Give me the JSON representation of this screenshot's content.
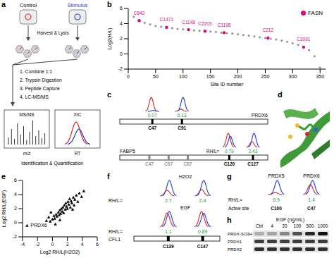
{
  "workflow": {
    "letter": "a",
    "control": "Control",
    "stimulus": "Stimulus",
    "harvest": "Harvest & Lysis",
    "steps": [
      "1. Combine 1:1",
      "2. Trypsin Digestion",
      "3. Peptide Capture",
      "4. LC-MS/MS"
    ],
    "ms_title": "MS/MS",
    "ms_axis": "m/z",
    "xic_title": "XIC",
    "xic_axis": "RT",
    "result": "Identification & Quantification"
  },
  "chart_data": [
    {
      "letter": "b",
      "type": "scatter",
      "x_label": "Site ID number",
      "y_label": "Log2(H/L)",
      "xlim": [
        0,
        360
      ],
      "xticks": [
        0,
        50,
        100,
        150,
        200,
        250,
        300,
        350
      ],
      "ylim": [
        -2,
        6
      ],
      "yticks": [
        -2,
        0,
        2,
        4,
        6
      ],
      "legend": "top-right",
      "series": [
        {
          "color": "#9a9a9a",
          "marker": "circle",
          "x": [
            0,
            10,
            20,
            30,
            40,
            50,
            60,
            70,
            80,
            90,
            100,
            110,
            120,
            130,
            140,
            150,
            160,
            170,
            180,
            190,
            200,
            210,
            220,
            230,
            240,
            250,
            260,
            270,
            280,
            290,
            300,
            310,
            320,
            330,
            340,
            350
          ],
          "values": [
            5.8,
            4.9,
            4.4,
            4.1,
            3.9,
            3.7,
            3.6,
            3.5,
            3.4,
            3.3,
            3.25,
            3.2,
            3.1,
            3.05,
            3.0,
            2.95,
            2.9,
            2.8,
            2.75,
            2.7,
            2.6,
            2.5,
            2.4,
            2.3,
            2.2,
            2.1,
            2.0,
            1.9,
            1.75,
            1.6,
            1.4,
            1.2,
            0.9,
            0.5,
            -0.3,
            -1.8
          ]
        },
        {
          "name": "FASN",
          "color": "#e5007e",
          "marker": "circle",
          "x": [
            20,
            70,
            110,
            140,
            175,
            255,
            320
          ],
          "values": [
            4.4,
            3.5,
            3.2,
            3.0,
            2.8,
            2.1,
            0.9
          ],
          "point_labels": [
            "C842",
            "C1471",
            "C1148",
            "C2203",
            "C1198",
            "C212",
            "C2091"
          ]
        }
      ]
    },
    {
      "letter": "e",
      "type": "scatter",
      "x_label": "Log2 RH/L(H2O2)",
      "y_label": "Log2 RH/L(EGF)",
      "xlim": [
        -4,
        6
      ],
      "xticks": [
        -4,
        -2,
        0,
        2,
        4,
        6
      ],
      "ylim": [
        -2,
        6
      ],
      "yticks": [
        -2,
        0,
        2,
        4,
        6
      ],
      "series": [
        {
          "color": "#000000",
          "marker": "triangle",
          "x": [
            -3.4,
            -0.8,
            -0.5,
            -0.3,
            0,
            0.2,
            0.3,
            0.5,
            0.6,
            0.8,
            0.9,
            1.0,
            1.1,
            1.2,
            1.3,
            1.4,
            1.5,
            1.6,
            1.7,
            1.8,
            1.9,
            2.0,
            2.1,
            2.2,
            2.3,
            2.4,
            2.5,
            2.6,
            2.8,
            2.9,
            3.0,
            3.2,
            3.4,
            3.6,
            3.9,
            4.2,
            -0.2,
            0.4,
            1.0,
            2.7
          ],
          "values": [
            -0.4,
            0.3,
            0.8,
            0.2,
            0.5,
            1.0,
            0.6,
            1.2,
            0.9,
            1.5,
            1.1,
            1.8,
            1.3,
            2.0,
            1.6,
            2.2,
            1.4,
            2.5,
            1.9,
            2.8,
            2.3,
            2.0,
            3.0,
            2.6,
            3.4,
            2.2,
            3.1,
            2.8,
            3.6,
            2.5,
            3.3,
            3.9,
            3.0,
            4.2,
            3.7,
            4.5,
            1.5,
            -0.2,
            0.4,
            1.9
          ]
        }
      ],
      "annotations": [
        {
          "text": "PRDX6",
          "x": -3.4,
          "y": -0.4
        }
      ]
    }
  ],
  "protein_sites": {
    "letter": "c",
    "proteins": [
      {
        "name": "PRDX6",
        "sites": [
          "C47",
          "C91"
        ],
        "ratios": [
          0.07,
          6.13
        ]
      },
      {
        "name": "FABP5",
        "ratio_label": "RH/L=",
        "sites": [
          "C47",
          "C67",
          "C87",
          "C120",
          "C127"
        ],
        "ratios": [
          null,
          null,
          null,
          0.79,
          2.43
        ]
      }
    ]
  },
  "structure": {
    "letter": "d"
  },
  "cfl1": {
    "letter": "f",
    "protein": "CFL1",
    "sites": [
      "C139",
      "C147"
    ],
    "ratio_label": "RH/L=",
    "conditions": [
      {
        "name": "H2O2",
        "ratios": [
          2.7,
          2.4
        ]
      },
      {
        "name": "EGF",
        "ratios": [
          1.1,
          0.89
        ]
      }
    ]
  },
  "active_site": {
    "letter": "g",
    "ratio_label": "RH/L=",
    "site_label": "Active site",
    "proteins": [
      {
        "name": "PRDX5",
        "site": "C100",
        "ratio": 6.9
      },
      {
        "name": "PRDX6",
        "site": "C47",
        "ratio": 1.4
      }
    ]
  },
  "blot": {
    "letter": "h",
    "treatment": "EGF (ng/mL)",
    "lanes": [
      "Ctrl",
      "4",
      "20",
      "100",
      "500",
      "1000"
    ],
    "rows": [
      "PRDX-SO3H",
      "PRDX1",
      "PRDX2"
    ]
  }
}
